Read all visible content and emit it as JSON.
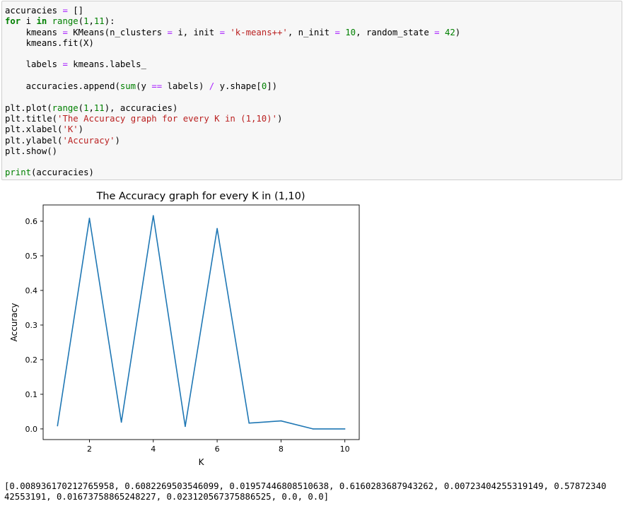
{
  "code_lines": [
    [
      {
        "t": "accuracies ",
        "c": ""
      },
      {
        "t": "=",
        "c": "op"
      },
      {
        "t": " []",
        "c": ""
      }
    ],
    [
      {
        "t": "for",
        "c": "kw"
      },
      {
        "t": " i ",
        "c": ""
      },
      {
        "t": "in",
        "c": "kw"
      },
      {
        "t": " ",
        "c": ""
      },
      {
        "t": "range",
        "c": "bi"
      },
      {
        "t": "(",
        "c": ""
      },
      {
        "t": "1",
        "c": "num"
      },
      {
        "t": ",",
        "c": ""
      },
      {
        "t": "11",
        "c": "num"
      },
      {
        "t": "):",
        "c": ""
      }
    ],
    [
      {
        "t": "    kmeans ",
        "c": ""
      },
      {
        "t": "=",
        "c": "op"
      },
      {
        "t": " KMeans(n_clusters ",
        "c": ""
      },
      {
        "t": "=",
        "c": "op"
      },
      {
        "t": " i, init ",
        "c": ""
      },
      {
        "t": "=",
        "c": "op"
      },
      {
        "t": " ",
        "c": ""
      },
      {
        "t": "'k-means++'",
        "c": "str"
      },
      {
        "t": ", n_init ",
        "c": ""
      },
      {
        "t": "=",
        "c": "op"
      },
      {
        "t": " ",
        "c": ""
      },
      {
        "t": "10",
        "c": "num"
      },
      {
        "t": ", random_state ",
        "c": ""
      },
      {
        "t": "=",
        "c": "op"
      },
      {
        "t": " ",
        "c": ""
      },
      {
        "t": "42",
        "c": "num"
      },
      {
        "t": ")",
        "c": ""
      }
    ],
    [
      {
        "t": "    kmeans.fit(X)",
        "c": ""
      }
    ],
    [],
    [
      {
        "t": "    labels ",
        "c": ""
      },
      {
        "t": "=",
        "c": "op"
      },
      {
        "t": " kmeans.labels_",
        "c": ""
      }
    ],
    [],
    [
      {
        "t": "    accuracies.append(",
        "c": ""
      },
      {
        "t": "sum",
        "c": "bi"
      },
      {
        "t": "(y ",
        "c": ""
      },
      {
        "t": "==",
        "c": "op"
      },
      {
        "t": " labels) ",
        "c": ""
      },
      {
        "t": "/",
        "c": "op"
      },
      {
        "t": " y.shape[",
        "c": ""
      },
      {
        "t": "0",
        "c": "num"
      },
      {
        "t": "])",
        "c": ""
      }
    ],
    [],
    [
      {
        "t": "plt.plot(",
        "c": ""
      },
      {
        "t": "range",
        "c": "bi"
      },
      {
        "t": "(",
        "c": ""
      },
      {
        "t": "1",
        "c": "num"
      },
      {
        "t": ",",
        "c": ""
      },
      {
        "t": "11",
        "c": "num"
      },
      {
        "t": "), accuracies)",
        "c": ""
      }
    ],
    [
      {
        "t": "plt.title(",
        "c": ""
      },
      {
        "t": "'The Accuracy graph for every K in (1,10)'",
        "c": "str"
      },
      {
        "t": ")",
        "c": ""
      }
    ],
    [
      {
        "t": "plt.xlabel(",
        "c": ""
      },
      {
        "t": "'K'",
        "c": "str"
      },
      {
        "t": ")",
        "c": ""
      }
    ],
    [
      {
        "t": "plt.ylabel(",
        "c": ""
      },
      {
        "t": "'Accuracy'",
        "c": "str"
      },
      {
        "t": ")",
        "c": ""
      }
    ],
    [
      {
        "t": "plt.show()",
        "c": ""
      }
    ],
    [],
    [
      {
        "t": "print",
        "c": "bi"
      },
      {
        "t": "(accuracies)",
        "c": ""
      }
    ]
  ],
  "chart_data": {
    "type": "line",
    "title": "The Accuracy graph for every K in (1,10)",
    "xlabel": "K",
    "ylabel": "Accuracy",
    "x": [
      1,
      2,
      3,
      4,
      5,
      6,
      7,
      8,
      9,
      10
    ],
    "series": [
      {
        "values": [
          0.008936170212765958,
          0.6082269503546099,
          0.01957446808510638,
          0.6160283687943262,
          0.00723404255319149,
          0.5787234042553191,
          0.01673758865248227,
          0.023120567375886525,
          0.0,
          0.0
        ],
        "color": "#1f77b4"
      }
    ],
    "xticks": [
      2,
      4,
      6,
      8,
      10
    ],
    "yticks": [
      0.0,
      0.1,
      0.2,
      0.3,
      0.4,
      0.5,
      0.6
    ],
    "xtick_labels": [
      "2",
      "4",
      "6",
      "8",
      "10"
    ],
    "ytick_labels": [
      "0.0",
      "0.1",
      "0.2",
      "0.3",
      "0.4",
      "0.5",
      "0.6"
    ],
    "xlim": [
      0.55,
      10.45
    ],
    "ylim": [
      -0.0308,
      0.6469
    ],
    "grid": false
  },
  "output": {
    "line1": "[0.008936170212765958, 0.6082269503546099, 0.01957446808510638, 0.6160283687943262, 0.00723404255319149, 0.57872340",
    "line2": "42553191, 0.01673758865248227, 0.023120567375886525, 0.0, 0.0]"
  }
}
